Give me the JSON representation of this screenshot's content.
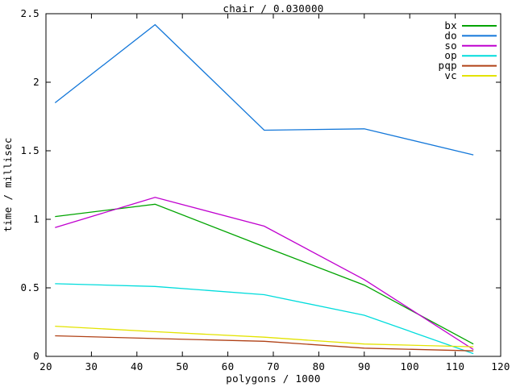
{
  "chart_data": {
    "type": "line",
    "title": "chair / 0.030000",
    "xlabel": "polygons / 1000",
    "ylabel": "time / millisec",
    "xlim": [
      20,
      120
    ],
    "ylim": [
      0,
      2.5
    ],
    "xticks": [
      20,
      30,
      40,
      50,
      60,
      70,
      80,
      90,
      100,
      110,
      120
    ],
    "yticks": [
      0,
      0.5,
      1,
      1.5,
      2,
      2.5
    ],
    "grid": false,
    "legend_position": "top-right-inside",
    "x": [
      22,
      44,
      68,
      90,
      114
    ],
    "series": [
      {
        "name": "bx",
        "color": "#00a400",
        "values": [
          1.02,
          1.11,
          0.8,
          0.52,
          0.09
        ]
      },
      {
        "name": "do",
        "color": "#1377d9",
        "values": [
          1.85,
          2.42,
          1.65,
          1.66,
          1.47
        ]
      },
      {
        "name": "so",
        "color": "#c000cf",
        "values": [
          0.94,
          1.16,
          0.95,
          0.56,
          0.05
        ]
      },
      {
        "name": "op",
        "color": "#00dcdc",
        "values": [
          0.53,
          0.51,
          0.45,
          0.3,
          0.02
        ]
      },
      {
        "name": "pqp",
        "color": "#b04116",
        "values": [
          0.15,
          0.13,
          0.11,
          0.06,
          0.04
        ]
      },
      {
        "name": "vc",
        "color": "#e3e300",
        "values": [
          0.22,
          0.18,
          0.14,
          0.09,
          0.07
        ]
      }
    ],
    "axis_color": "#000000",
    "background_color": "#ffffff"
  }
}
